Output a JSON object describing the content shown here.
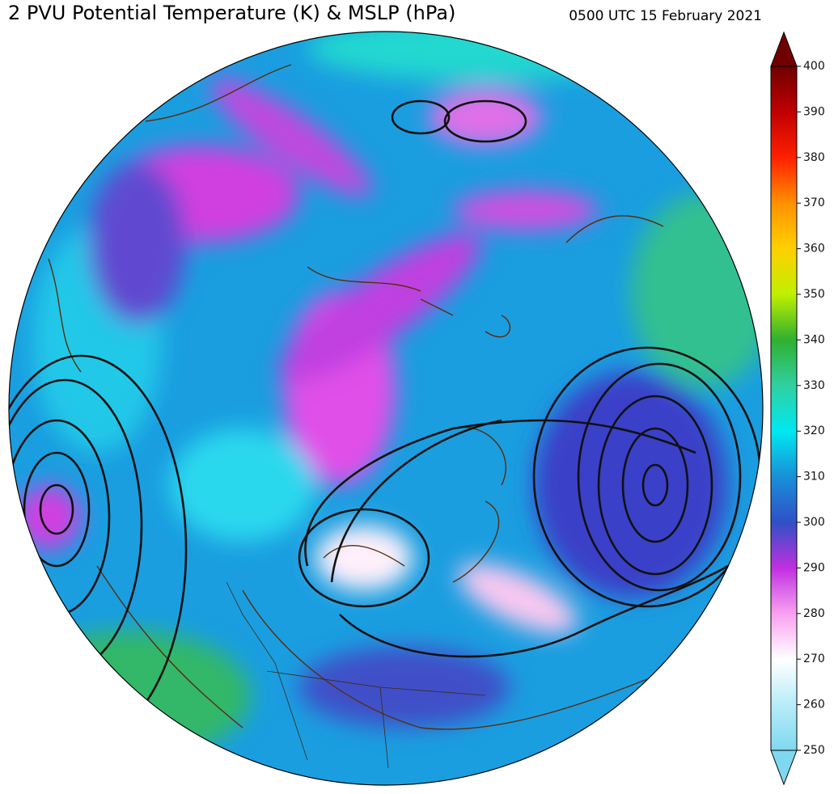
{
  "header": {
    "title": "2 PVU Potential Temperature (K) & MSLP (hPa)",
    "timestamp": "0500 UTC 15 February 2021"
  },
  "colorbar": {
    "lim": [
      250,
      400
    ],
    "ticks": [
      250,
      260,
      270,
      280,
      290,
      300,
      310,
      320,
      330,
      340,
      350,
      360,
      370,
      380,
      390,
      400
    ],
    "colors": [
      "#80d8f0",
      "#b8ecf8",
      "#ffffff",
      "#f8a0f0",
      "#c030e0",
      "#3050c8",
      "#1890d8",
      "#00e8f0",
      "#30d0a0",
      "#30b030",
      "#c0f000",
      "#ffd000",
      "#ff9000",
      "#ff2000",
      "#c00000",
      "#700000"
    ]
  }
}
